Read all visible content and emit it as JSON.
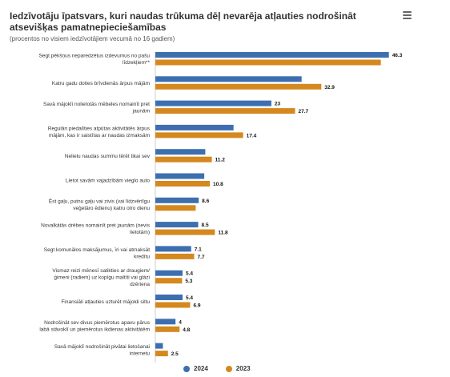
{
  "title": "Iedzīvotāju īpatsvars, kuri naudas trūkuma dēļ nevarēja atļauties nodrošināt atsevišķas pamatnepieciešamības",
  "subtitle": "(procentos no visiem iedzīvotājiem vecumā no 16 gadiem)",
  "menu_icon": "hamburger-menu-icon",
  "colors": {
    "2024": "#3d6fb0",
    "2023": "#d4881e"
  },
  "legend": [
    {
      "label": "2024",
      "color": "#3d6fb0"
    },
    {
      "label": "2023",
      "color": "#d4881e"
    }
  ],
  "chart_data": {
    "type": "bar",
    "orientation": "horizontal",
    "title": "Iedzīvotāju īpatsvars, kuri naudas trūkuma dēļ nevarēja atļauties nodrošināt atsevišķas pamatnepieciešamības",
    "subtitle": "(procentos no visiem iedzīvotājiem vecumā no 16 gadiem)",
    "categories": [
      [
        "Segt pēkšņus neparedzētus izdevumus no pašu",
        "līdzekļiem**"
      ],
      [
        "Katru gadu doties brīvdienās ārpus mājām"
      ],
      [
        "Savā mājoklī nolietotās mēbeles nomainīt pret",
        "jaunām"
      ],
      [
        "Regulāri piedalīties atpūtas aktivitātēs ārpus",
        "mājām, kas ir saistītas ar naudas izmaksām"
      ],
      [
        "Nelielu naudas summu tērēt tikai sev"
      ],
      [
        "Lietot savām vajadzībām vieglo auto"
      ],
      [
        "Ēst gaļu, putnu gaļu vai zivis (vai līdzvērtīgu",
        "veģetāro ēdienu) katru otro dienu"
      ],
      [
        "Novalkātās drēbes nomainīt pret jaunām (nevis",
        "lietotām)"
      ],
      [
        "Segt komunālos maksājumus, īri vai atmaksāt",
        "kredītu"
      ],
      [
        "Vismaz reizi mēnesī satikties ar draugiem/",
        "ģimeni (radiem) uz kopīgu maltīti vai glāzi",
        "dzēriena"
      ],
      [
        "Finansiāli atļauties uzturēt mājokli siltu"
      ],
      [
        "Nodrošināt sev divus piemērotus apavu pārus",
        "labā stāvoklī un piemērotus ikdienas aktivitātēm"
      ],
      [
        "Savā mājoklī nodrošināt pivātai lietošanai",
        "internetu"
      ]
    ],
    "series": [
      {
        "name": "2024",
        "color": "#3d6fb0",
        "values": [
          46.3,
          null,
          23,
          null,
          null,
          null,
          8.6,
          8.5,
          7.1,
          5.4,
          5.4,
          4,
          null
        ],
        "bar_values": [
          46.3,
          29.0,
          23,
          15.5,
          9.9,
          9.7,
          8.6,
          8.5,
          7.1,
          5.4,
          5.4,
          4,
          1.5
        ]
      },
      {
        "name": "2023",
        "color": "#d4881e",
        "values": [
          null,
          32.9,
          27.7,
          17.4,
          11.2,
          10.8,
          null,
          11.8,
          7.7,
          5.3,
          6.9,
          4.8,
          2.5
        ],
        "bar_values": [
          44.7,
          32.9,
          27.7,
          17.4,
          11.2,
          10.8,
          8.0,
          11.8,
          7.7,
          5.3,
          6.9,
          4.8,
          2.5
        ]
      }
    ],
    "data_labels": [
      {
        "series": "2024",
        "index": 0,
        "text": "46.3"
      },
      {
        "series": "2023",
        "index": 1,
        "text": "32.9"
      },
      {
        "series": "2024",
        "index": 2,
        "text": "23"
      },
      {
        "series": "2023",
        "index": 2,
        "text": "27.7"
      },
      {
        "series": "2023",
        "index": 3,
        "text": "17.4"
      },
      {
        "series": "2023",
        "index": 4,
        "text": "11.2"
      },
      {
        "series": "2023",
        "index": 5,
        "text": "10.8"
      },
      {
        "series": "2024",
        "index": 6,
        "text": "8.6"
      },
      {
        "series": "2024",
        "index": 7,
        "text": "8.5"
      },
      {
        "series": "2023",
        "index": 7,
        "text": "11.8"
      },
      {
        "series": "2024",
        "index": 8,
        "text": "7.1"
      },
      {
        "series": "2023",
        "index": 8,
        "text": "7.7"
      },
      {
        "series": "2024",
        "index": 9,
        "text": "5.4"
      },
      {
        "series": "2023",
        "index": 9,
        "text": "5.3"
      },
      {
        "series": "2024",
        "index": 10,
        "text": "5.4"
      },
      {
        "series": "2023",
        "index": 10,
        "text": "6.9"
      },
      {
        "series": "2024",
        "index": 11,
        "text": "4"
      },
      {
        "series": "2023",
        "index": 11,
        "text": "4.8"
      },
      {
        "series": "2023",
        "index": 12,
        "text": "2.5"
      }
    ],
    "xlim": [
      0,
      48
    ],
    "grid": false,
    "legend_position": "bottom-center"
  }
}
